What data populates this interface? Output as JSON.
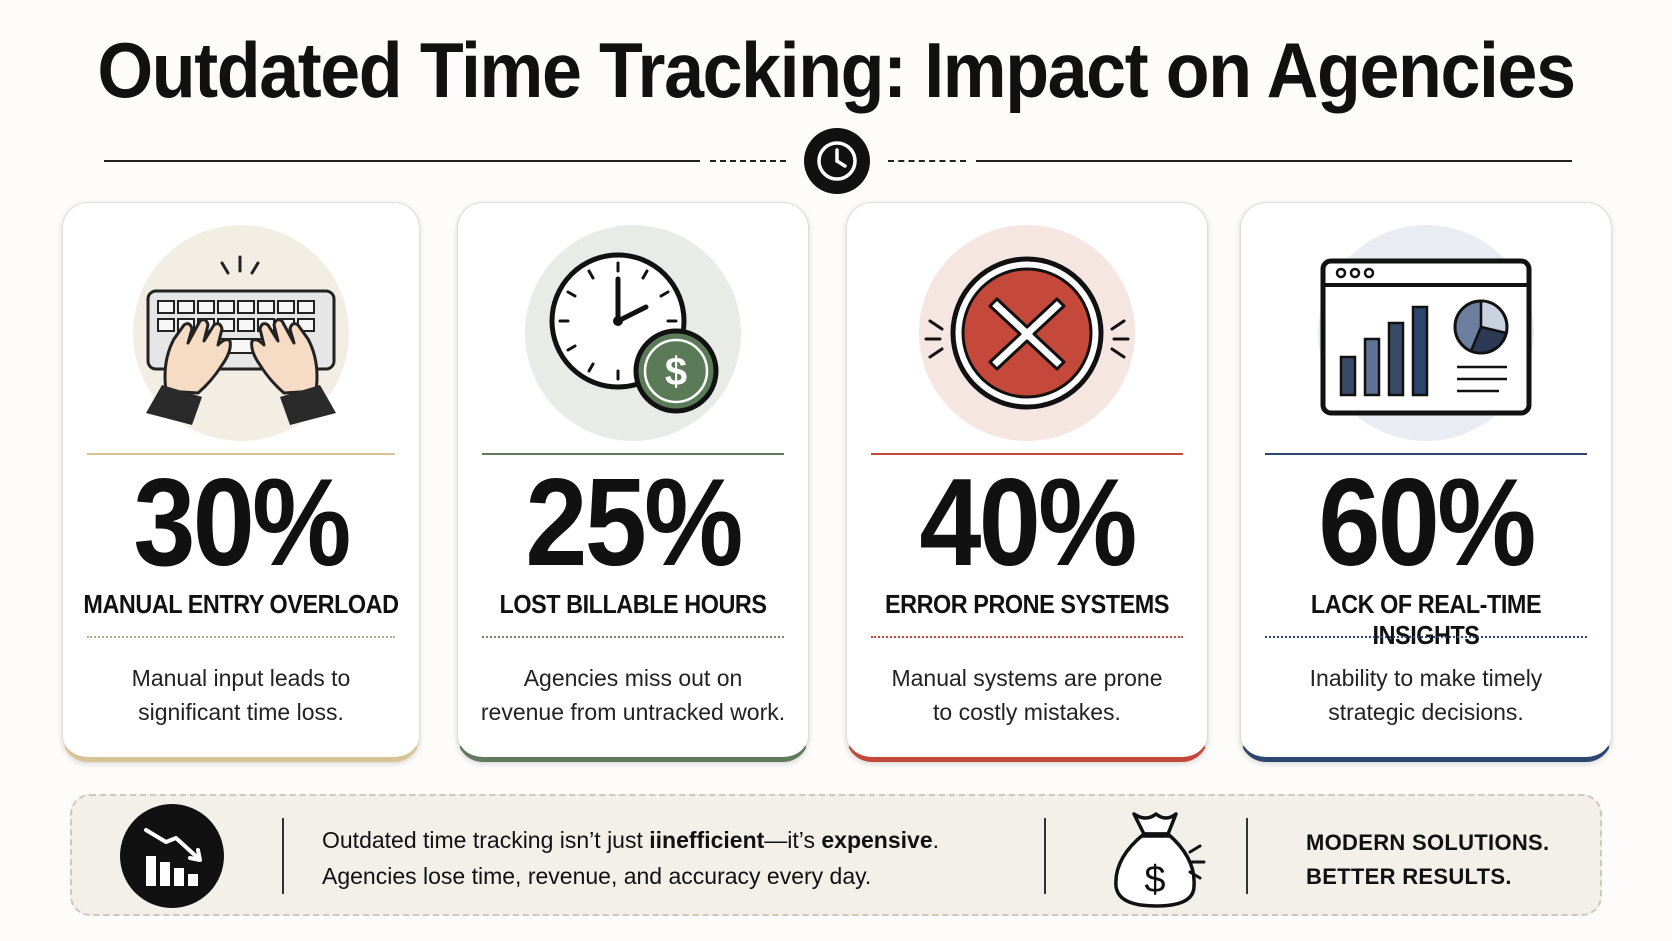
{
  "title": "Outdated Time Tracking: Impact on Agencies",
  "colors": {
    "beige": "#d8c394",
    "green": "#5f7a5d",
    "red": "#c5493a",
    "navy": "#2c4670"
  },
  "cards": [
    {
      "percent": "30%",
      "label": "MANUAL ENTRY OVERLOAD",
      "desc_line1": "Manual input leads to",
      "desc_line2": "significant time loss.",
      "icon": "keyboard-typing-icon"
    },
    {
      "percent": "25%",
      "label": "LOST BILLABLE HOURS",
      "desc_line1": "Agencies miss out on",
      "desc_line2": "revenue from untracked work.",
      "icon": "clock-dollar-icon"
    },
    {
      "percent": "40%",
      "label": "ERROR PRONE SYSTEMS",
      "desc_line1": "Manual systems are prone",
      "desc_line2": "to costly mistakes.",
      "icon": "error-x-icon"
    },
    {
      "percent": "60%",
      "label": "LACK OF REAL-TIME INSIGHTS",
      "desc_line1": "Inability to make timely",
      "desc_line2": "strategic decisions.",
      "icon": "dashboard-chart-icon"
    }
  ],
  "footer": {
    "line1_prefix": "Outdated time tracking isn’t just ",
    "line1_bold1": "iinefficient",
    "line1_mid": "—it’s ",
    "line1_bold2": "expensive",
    "line1_suffix": ".",
    "line2": "Agencies lose time, revenue, and accuracy every day.",
    "cta_line1": "MODERN SOLUTIONS.",
    "cta_line2": "BETTER RESULTS."
  }
}
